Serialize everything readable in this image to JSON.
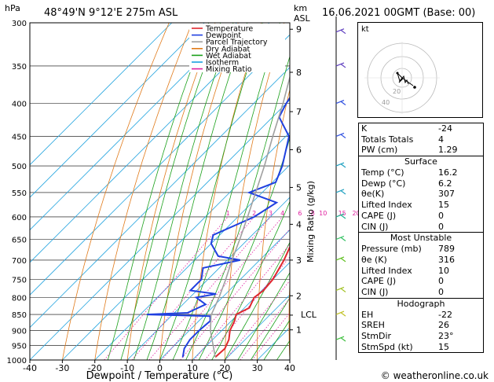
{
  "header": {
    "hpa_label": "hPa",
    "location": "48°49'N  9°12'E  275m  ASL",
    "km_label": "km",
    "asl_label": "ASL",
    "datetime": "16.06.2021  00GMT  (Base: 00)"
  },
  "legend": [
    {
      "label": "Temperature",
      "color": "#e0282e"
    },
    {
      "label": "Dewpoint",
      "color": "#2040e0"
    },
    {
      "label": "Parcel Trajectory",
      "color": "#a0a0a0"
    },
    {
      "label": "Dry Adiabat",
      "color": "#e07a1a"
    },
    {
      "label": "Wet Adiabat",
      "color": "#1aa01a"
    },
    {
      "label": "Isotherm",
      "color": "#1aa0e0"
    },
    {
      "label": "Mixing Ratio",
      "color": "#e020a0"
    }
  ],
  "chart_data": {
    "type": "line",
    "title": "",
    "xlabel": "Dewpoint / Temperature (°C)",
    "ylabel": "hPa",
    "xlim": [
      -40,
      40
    ],
    "ylim": [
      1000,
      300
    ],
    "pressure_ticks": [
      "300",
      "350",
      "400",
      "450",
      "500",
      "550",
      "600",
      "650",
      "700",
      "750",
      "800",
      "850",
      "900",
      "950",
      "1000"
    ],
    "temp_ticks": [
      "-40",
      "-30",
      "-20",
      "-10",
      "0",
      "10",
      "20",
      "30",
      "40"
    ],
    "km_ticks": [
      {
        "label": "9",
        "p": 307
      },
      {
        "label": "8",
        "p": 358
      },
      {
        "label": "7",
        "p": 412
      },
      {
        "label": "6",
        "p": 472
      },
      {
        "label": "5",
        "p": 540
      },
      {
        "label": "4",
        "p": 616
      },
      {
        "label": "3",
        "p": 700
      },
      {
        "label": "2",
        "p": 795
      },
      {
        "label": "1",
        "p": 898
      }
    ],
    "lcl": {
      "label": "LCL",
      "p": 852
    },
    "mixing_ratio_axis_label": "Mixing Ratio (g/kg)",
    "mixing_ratio_labels": [
      "1",
      "2",
      "3",
      "4",
      "6",
      "8",
      "10",
      "15",
      "20",
      "25"
    ],
    "series": [
      {
        "name": "Temperature",
        "color": "#e0282e",
        "p": [
          990,
          960,
          930,
          900,
          870,
          850,
          830,
          800,
          780,
          750,
          700,
          650,
          600,
          550,
          500,
          450,
          400,
          350,
          300
        ],
        "t": [
          16.2,
          16.5,
          15.0,
          12.5,
          11.0,
          9.5,
          11.5,
          9.8,
          10.5,
          10.0,
          7.5,
          4.0,
          0.0,
          -4.5,
          -9.5,
          -17.0,
          -23.5,
          -32.5,
          -41.0
        ]
      },
      {
        "name": "Dewpoint",
        "color": "#2040e0",
        "p": [
          990,
          960,
          930,
          900,
          870,
          855,
          850,
          845,
          820,
          800,
          790,
          780,
          750,
          720,
          700,
          690,
          660,
          640,
          600,
          570,
          550,
          530,
          500,
          450,
          420,
          400,
          350,
          300
        ],
        "t": [
          6.2,
          4.0,
          3.0,
          3.0,
          3.5,
          2.0,
          -18.0,
          -6.0,
          -3.0,
          -8.0,
          -3.0,
          -12.0,
          -12.0,
          -15.0,
          -6.0,
          -14.0,
          -20.0,
          -22.0,
          -15.0,
          -12.5,
          -24.0,
          -19.0,
          -22.0,
          -29.0,
          -38.0,
          -40.0,
          -44.0,
          -55.0
        ]
      },
      {
        "name": "Parcel Trajectory",
        "color": "#a0a0a0",
        "p": [
          990,
          900,
          852,
          800,
          750,
          700,
          650,
          600,
          550,
          500,
          450,
          400,
          350,
          300
        ],
        "t": [
          16.2,
          6.5,
          2.0,
          -1.0,
          -4.5,
          -8.5,
          -12.5,
          -17.0,
          -22.0,
          -27.5,
          -34.0,
          -41.0,
          -49.5,
          -58.5
        ]
      }
    ]
  },
  "indices": {
    "rows": [
      {
        "label": "K",
        "value": "-24"
      },
      {
        "label": "Totals Totals",
        "value": "4"
      },
      {
        "label": "PW (cm)",
        "value": "1.29"
      }
    ]
  },
  "surface": {
    "title": "Surface",
    "rows": [
      {
        "label": "Temp (°C)",
        "value": "16.2"
      },
      {
        "label": "Dewp (°C)",
        "value": "6.2"
      },
      {
        "label": "θe(K)",
        "value": "307"
      },
      {
        "label": "Lifted Index",
        "value": "15"
      },
      {
        "label": "CAPE (J)",
        "value": "0"
      },
      {
        "label": "CIN (J)",
        "value": "0"
      }
    ]
  },
  "most_unstable": {
    "title": "Most Unstable",
    "rows": [
      {
        "label": "Pressure (mb)",
        "value": "789"
      },
      {
        "label": "θe (K)",
        "value": "316"
      },
      {
        "label": "Lifted Index",
        "value": "10"
      },
      {
        "label": "CAPE (J)",
        "value": "0"
      },
      {
        "label": "CIN (J)",
        "value": "0"
      }
    ]
  },
  "hodograph": {
    "kt_label": "kt",
    "ring_labels": [
      "20",
      "40"
    ],
    "section_title": "Hodograph",
    "rows": [
      {
        "label": "EH",
        "value": "-22"
      },
      {
        "label": "SREH",
        "value": "26"
      },
      {
        "label": "StmDir",
        "value": "23°"
      },
      {
        "label": "StmSpd (kt)",
        "value": "15"
      }
    ]
  },
  "footer": {
    "credit": "© weatheronline.co.uk"
  }
}
